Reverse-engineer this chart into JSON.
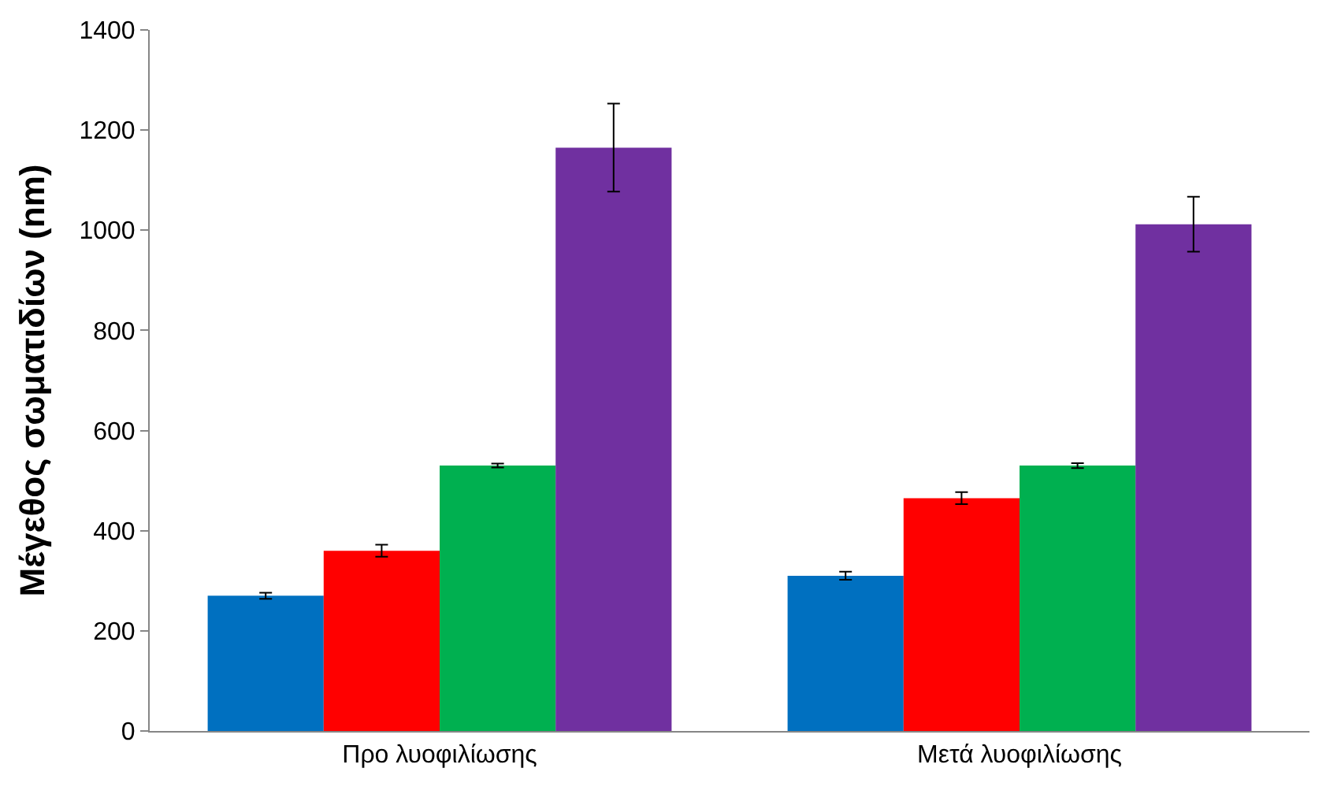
{
  "chart_data": {
    "type": "bar",
    "ylabel": "Μέγεθος σωματιδίων (nm)",
    "categories": [
      "Προ λυοφιλίωσης",
      "Μετά λυοφιλίωσης"
    ],
    "series": [
      {
        "color": "#0070c0",
        "values": [
          270,
          310
        ],
        "errors": [
          6,
          8
        ]
      },
      {
        "color": "#ff0000",
        "values": [
          360,
          465
        ],
        "errors": [
          12,
          12
        ]
      },
      {
        "color": "#00b050",
        "values": [
          530,
          530
        ],
        "errors": [
          4,
          5
        ]
      },
      {
        "color": "#7030a0",
        "values": [
          1165,
          1012
        ],
        "errors": [
          88,
          55
        ]
      }
    ],
    "ylim": [
      0,
      1400
    ],
    "yticks": [
      0,
      200,
      400,
      600,
      800,
      1000,
      1200,
      1400
    ]
  }
}
